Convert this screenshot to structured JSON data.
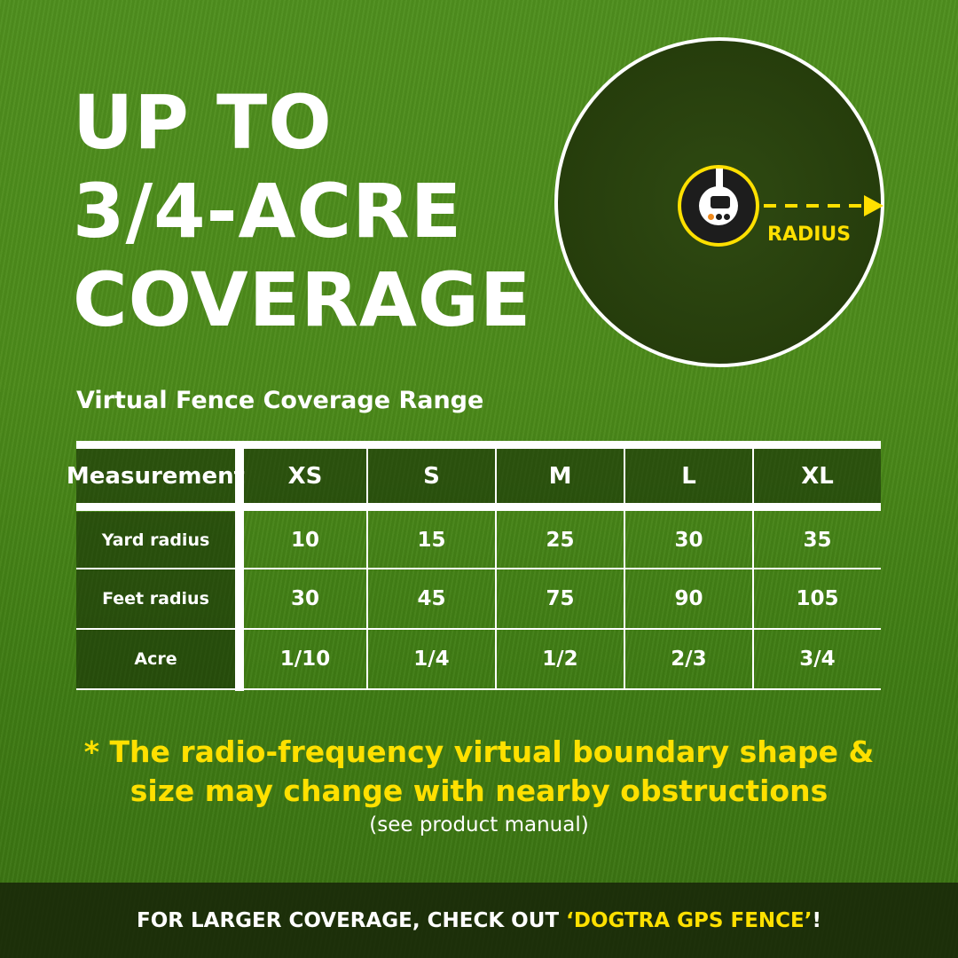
{
  "headline": [
    "UP TO",
    "3/4-ACRE",
    "COVERAGE"
  ],
  "diagram": {
    "label": "RADIUS"
  },
  "subtitle": "Virtual Fence Coverage Range",
  "table": {
    "header": [
      "Measurement",
      "XS",
      "S",
      "M",
      "L",
      "XL"
    ],
    "rows": [
      {
        "label": "Yard radius",
        "values": [
          "10",
          "15",
          "25",
          "30",
          "35"
        ]
      },
      {
        "label": "Feet radius",
        "values": [
          "30",
          "45",
          "75",
          "90",
          "105"
        ]
      },
      {
        "label": "Acre",
        "values": [
          "1/10",
          "1/4",
          "1/2",
          "2/3",
          "3/4"
        ]
      }
    ]
  },
  "note": {
    "line1": "* The radio-frequency virtual boundary shape &",
    "line2": "size may change with nearby obstructions",
    "manual": "(see product manual)"
  },
  "footer": {
    "prefix": "FOR LARGER COVERAGE, CHECK OUT ",
    "highlight": "‘DOGTRA GPS FENCE’",
    "suffix": "!"
  },
  "colors": {
    "accent": "#ffe000",
    "text": "#ffffff",
    "grass": "#4c8a1a"
  }
}
